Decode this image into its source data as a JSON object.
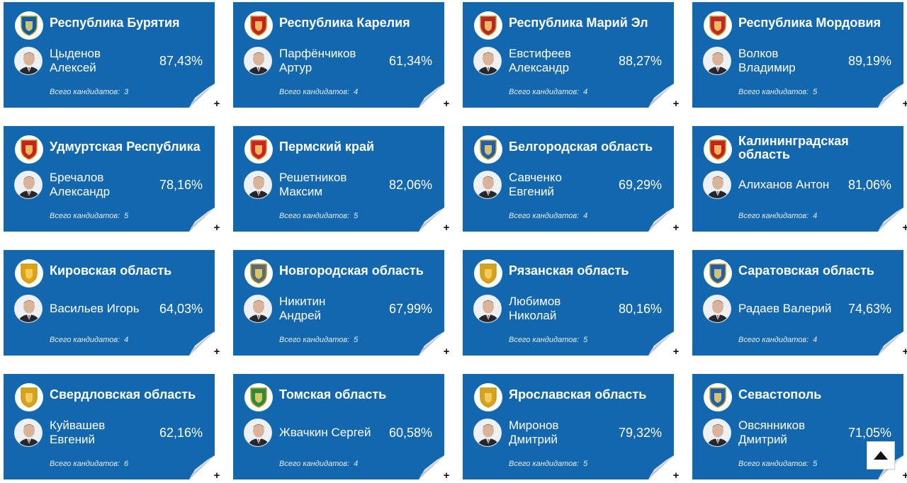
{
  "cards": [
    {
      "region": "Республика Бурятия",
      "name": "Цыденов\nАлексей",
      "percent": "87,43%",
      "total_label": "Всего кандидатов:",
      "total": "3",
      "emblem_icon": "buryatia-emblem-icon",
      "emblem_color": "#0a5ea8"
    },
    {
      "region": "Республика Карелия",
      "name": "Парфёнчиков\nАртур",
      "percent": "61,34%",
      "total_label": "Всего кандидатов:",
      "total": "4",
      "emblem_icon": "karelia-emblem-icon",
      "emblem_color": "#c8201e"
    },
    {
      "region": "Республика Марий Эл",
      "name": "Евстифеев\nАлександр",
      "percent": "88,27%",
      "total_label": "Всего кандидатов:",
      "total": "4",
      "emblem_icon": "mari-el-emblem-icon",
      "emblem_color": "#b9252b"
    },
    {
      "region": "Республика Мордовия",
      "name": "Волков\nВладимир",
      "percent": "89,19%",
      "total_label": "Всего кандидатов:",
      "total": "5",
      "emblem_icon": "mordovia-emblem-icon",
      "emblem_color": "#c0262c"
    },
    {
      "region": "Удмуртская Республика",
      "name": "Бречалов\nАлександр",
      "percent": "78,16%",
      "total_label": "Всего кандидатов:",
      "total": "5",
      "emblem_icon": "udmurtia-emblem-icon",
      "emblem_color": "#c8201e"
    },
    {
      "region": "Пермский край",
      "name": "Решетников\nМаксим",
      "percent": "82,06%",
      "total_label": "Всего кандидатов:",
      "total": "5",
      "emblem_icon": "perm-emblem-icon",
      "emblem_color": "#d0202a"
    },
    {
      "region": "Белгородская область",
      "name": "Савченко\nЕвгений",
      "percent": "69,29%",
      "total_label": "Всего кандидатов:",
      "total": "4",
      "emblem_icon": "belgorod-emblem-icon",
      "emblem_color": "#1f5fae"
    },
    {
      "region": "Калининградская\nобласть",
      "name": "Алиханов Антон",
      "percent": "81,06%",
      "total_label": "Всего кандидатов:",
      "total": "4",
      "emblem_icon": "kaliningrad-emblem-icon",
      "emblem_color": "#c8201e"
    },
    {
      "region": "Кировская область",
      "name": "Васильев Игорь",
      "percent": "64,03%",
      "total_label": "Всего кандидатов:",
      "total": "4",
      "emblem_icon": "kirov-emblem-icon",
      "emblem_color": "#e2a20e"
    },
    {
      "region": "Новгородская область",
      "name": "Никитин\nАндрей",
      "percent": "67,99%",
      "total_label": "Всего кандидатов:",
      "total": "5",
      "emblem_icon": "novgorod-emblem-icon",
      "emblem_color": "#5a6b78"
    },
    {
      "region": "Рязанская область",
      "name": "Любимов\nНиколай",
      "percent": "80,16%",
      "total_label": "Всего кандидатов:",
      "total": "5",
      "emblem_icon": "ryazan-emblem-icon",
      "emblem_color": "#d9a21c"
    },
    {
      "region": "Саратовская область",
      "name": "Радаев Валерий",
      "percent": "74,63%",
      "total_label": "Всего кандидатов:",
      "total": "4",
      "emblem_icon": "saratov-emblem-icon",
      "emblem_color": "#1f5fae"
    },
    {
      "region": "Свердловская область",
      "name": "Куйвашев\nЕвгений",
      "percent": "62,16%",
      "total_label": "Всего кандидатов:",
      "total": "6",
      "emblem_icon": "sverdlovsk-emblem-icon",
      "emblem_color": "#d9a21c"
    },
    {
      "region": "Томская область",
      "name": "Жвачкин Сергей",
      "percent": "60,58%",
      "total_label": "Всего кандидатов:",
      "total": "4",
      "emblem_icon": "tomsk-emblem-icon",
      "emblem_color": "#2e8a3e"
    },
    {
      "region": "Ярославская область",
      "name": "Миронов\nДмитрий",
      "percent": "79,32%",
      "total_label": "Всего кандидатов:",
      "total": "5",
      "emblem_icon": "yaroslavl-emblem-icon",
      "emblem_color": "#d9a21c"
    },
    {
      "region": "Севастополь",
      "name": "Овсянников\nДмитрий",
      "percent": "71,05%",
      "total_label": "Всего кандидатов:",
      "total": "5",
      "emblem_icon": "sevastopol-emblem-icon",
      "emblem_color": "#1f5fae"
    }
  ],
  "card_color": "#1367ae",
  "expand_label": "+",
  "scroll_top_icon": "arrow-up-icon"
}
